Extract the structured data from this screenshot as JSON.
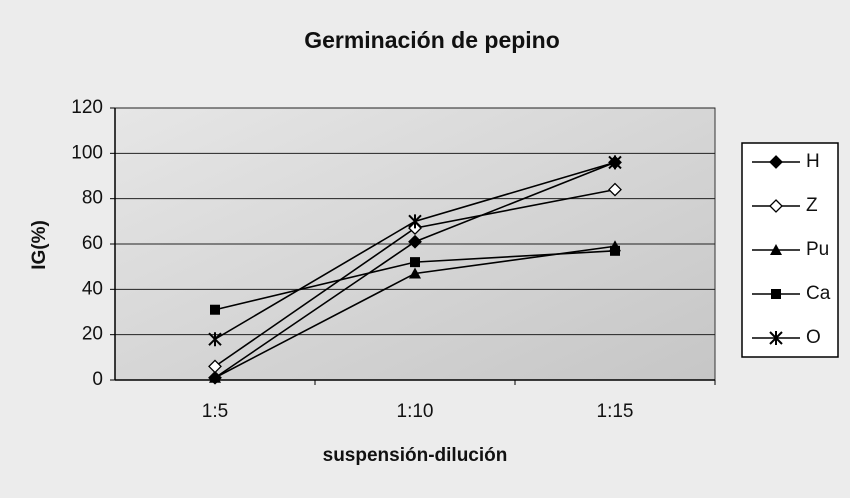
{
  "chart_data": {
    "type": "line",
    "title": "Germinación de pepino",
    "x_label": "suspensión-dilución",
    "y_label": "IG(%)",
    "categories": [
      "1:5",
      "1:10",
      "1:15"
    ],
    "series": [
      {
        "name": "H",
        "color": "#000000",
        "marker": "diamond",
        "values": [
          1,
          61,
          96
        ]
      },
      {
        "name": "Z",
        "color": "#000000",
        "marker": "diamond-open",
        "values": [
          6,
          67,
          84
        ]
      },
      {
        "name": "Pu",
        "color": "#000000",
        "marker": "triangle",
        "values": [
          1,
          47,
          59
        ]
      },
      {
        "name": "Ca",
        "color": "#000000",
        "marker": "square",
        "values": [
          31,
          52,
          57
        ]
      },
      {
        "name": "O",
        "color": "#000000",
        "marker": "star",
        "values": [
          18,
          70,
          96
        ]
      }
    ],
    "ylim": [
      0,
      120
    ],
    "yticks": [
      0,
      20,
      40,
      60,
      80,
      100,
      120
    ],
    "grid": true,
    "legend": "right"
  }
}
